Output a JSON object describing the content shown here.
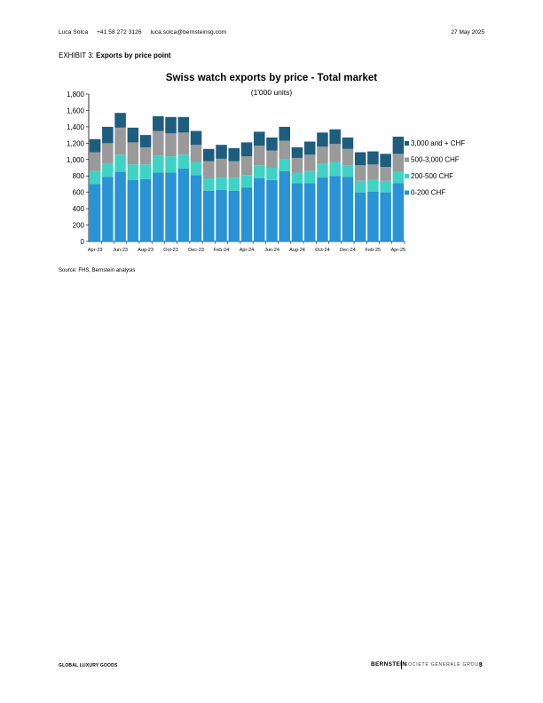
{
  "header": {
    "author": "Luca Solca",
    "phone": "+41 58 272 3126",
    "email": "luca.solca@bernsteinsg.com",
    "date": "27 May 2025"
  },
  "exhibit": {
    "label": "EXHIBIT 3:",
    "title": "Exports by price point"
  },
  "source": "Source: FHS, Bernstein analysis",
  "footer": {
    "section": "GLOBAL LUXURY GOODS",
    "brand": "BERNSTEIN",
    "brand_secondary": "SOCIETE GENERALE GROUP",
    "page": "3"
  },
  "chart_data": {
    "type": "bar",
    "stacked": true,
    "title": "Swiss watch exports by price - Total market",
    "subtitle": "(1'000 units)",
    "categories": [
      "Apr-23",
      "May-23",
      "Jun-23",
      "Jul-23",
      "Aug-23",
      "Sep-23",
      "Oct-23",
      "Nov-23",
      "Dec-23",
      "Jan-24",
      "Feb-24",
      "Mar-24",
      "Apr-24",
      "May-24",
      "Jun-24",
      "Jul-24",
      "Aug-24",
      "Sep-24",
      "Oct-24",
      "Nov-24",
      "Dec-24",
      "Jan-25",
      "Feb-25",
      "Mar-25",
      "Apr-25"
    ],
    "tick_labels": [
      "Apr-23",
      "Jun-23",
      "Aug-23",
      "Oct-23",
      "Dec-23",
      "Feb-24",
      "Apr-24",
      "Jun-24",
      "Aug-24",
      "Oct-24",
      "Dec-24",
      "Feb-25",
      "Apr-25"
    ],
    "series": [
      {
        "name": "0-200 CHF",
        "color": "#2a93d5",
        "values": [
          700,
          790,
          850,
          750,
          760,
          840,
          840,
          890,
          810,
          620,
          630,
          620,
          660,
          770,
          750,
          860,
          710,
          710,
          780,
          800,
          790,
          600,
          610,
          600,
          710
        ]
      },
      {
        "name": "200-500 CHF",
        "color": "#3fd3c6",
        "values": [
          160,
          160,
          210,
          190,
          180,
          210,
          200,
          170,
          160,
          150,
          150,
          160,
          150,
          160,
          150,
          140,
          130,
          150,
          170,
          170,
          140,
          140,
          140,
          140,
          140
        ]
      },
      {
        "name": "500-3,000 CHF",
        "color": "#9a9a9a",
        "values": [
          230,
          250,
          330,
          270,
          210,
          300,
          280,
          270,
          210,
          210,
          230,
          200,
          230,
          240,
          210,
          230,
          180,
          200,
          210,
          220,
          200,
          190,
          190,
          170,
          220
        ]
      },
      {
        "name": "3,000 and + CHF",
        "color": "#1e5d7d",
        "values": [
          160,
          200,
          180,
          180,
          150,
          180,
          200,
          190,
          170,
          150,
          170,
          160,
          170,
          170,
          160,
          170,
          130,
          160,
          170,
          180,
          140,
          160,
          160,
          160,
          210
        ]
      }
    ],
    "legend_order": [
      "3,000 and + CHF",
      "500-3,000 CHF",
      "200-500 CHF",
      "0-200 CHF"
    ],
    "legend_position": "right",
    "ylim": [
      0,
      1800
    ],
    "yticks": [
      0,
      200,
      400,
      600,
      800,
      1000,
      1200,
      1400,
      1600,
      1800
    ],
    "ytick_labels": [
      "0",
      "200",
      "400",
      "600",
      "800",
      "1,000",
      "1,200",
      "1,400",
      "1,600",
      "1,800"
    ],
    "grid": false
  }
}
